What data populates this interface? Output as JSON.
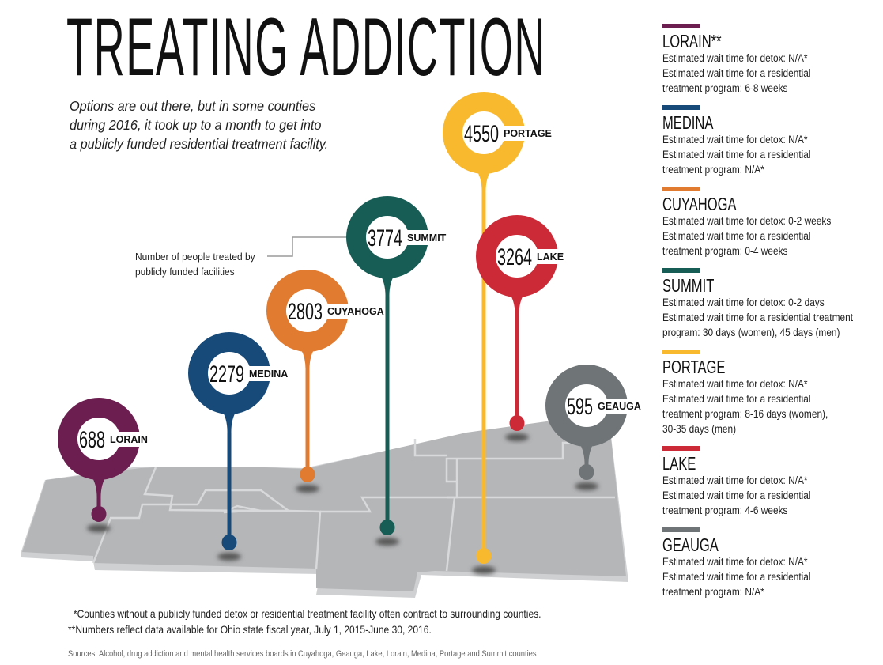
{
  "title": "TREATING ADDICTION",
  "subtitle": [
    "Options are out there, but in some counties",
    "during 2016, it took up to a month to get into",
    "a publicly funded residential treatment facility."
  ],
  "annotation": [
    "Number of people treated by",
    "publicly funded facilities"
  ],
  "chart_data": {
    "type": "bar",
    "title": "Number of people treated by publicly funded facilities",
    "categories": [
      "LORAIN",
      "MEDINA",
      "CUYAHOGA",
      "SUMMIT",
      "PORTAGE",
      "LAKE",
      "GEAUGA"
    ],
    "values": [
      688,
      2279,
      2803,
      3774,
      4550,
      3264,
      595
    ],
    "colors": [
      "#6b1e4f",
      "#174a78",
      "#e07b30",
      "#175d56",
      "#f9b92f",
      "#cc2a36",
      "#6f7477"
    ]
  },
  "legend": [
    {
      "name": "LORAIN**",
      "color": "#6b1e4f",
      "lines": [
        "Estimated wait time for detox: N/A*",
        "Estimated wait time for a residential",
        "treatment program: 6-8 weeks"
      ]
    },
    {
      "name": "MEDINA",
      "color": "#174a78",
      "lines": [
        "Estimated wait time for detox: N/A*",
        "Estimated wait time for a residential",
        "treatment program: N/A*"
      ]
    },
    {
      "name": "CUYAHOGA",
      "color": "#e07b30",
      "lines": [
        "Estimated wait time for detox: 0-2 weeks",
        "Estimated wait time for a residential",
        "treatment program: 0-4 weeks"
      ]
    },
    {
      "name": "SUMMIT",
      "color": "#175d56",
      "lines": [
        "Estimated wait time for detox: 0-2 days",
        "Estimated wait time for a residential treatment",
        "program: 30 days (women), 45 days (men)"
      ]
    },
    {
      "name": "PORTAGE",
      "color": "#f9b92f",
      "lines": [
        "Estimated wait time for detox: N/A*",
        "Estimated wait time for a residential",
        "treatment program: 8-16 days (women),",
        "30-35 days (men)"
      ]
    },
    {
      "name": "LAKE",
      "color": "#cc2a36",
      "lines": [
        "Estimated wait time for detox: N/A*",
        "Estimated wait time for a residential",
        "treatment program: 4-6 weeks"
      ]
    },
    {
      "name": "GEAUGA",
      "color": "#6f7477",
      "lines": [
        "Estimated wait time for detox: N/A*",
        "Estimated wait time for a residential",
        "treatment program: N/A*"
      ]
    }
  ],
  "footnotes": [
    "*Counties without a publicly funded detox or residential treatment facility often contract to surrounding counties.",
    "**Numbers reflect data available for Ohio state fiscal year, July 1, 2015-June 30, 2016."
  ],
  "sources": "Sources: Alcohol, drug addiction and mental health services boards in Cuyahoga, Geauga, Lake, Lorain, Medina, Portage and Summit counties"
}
